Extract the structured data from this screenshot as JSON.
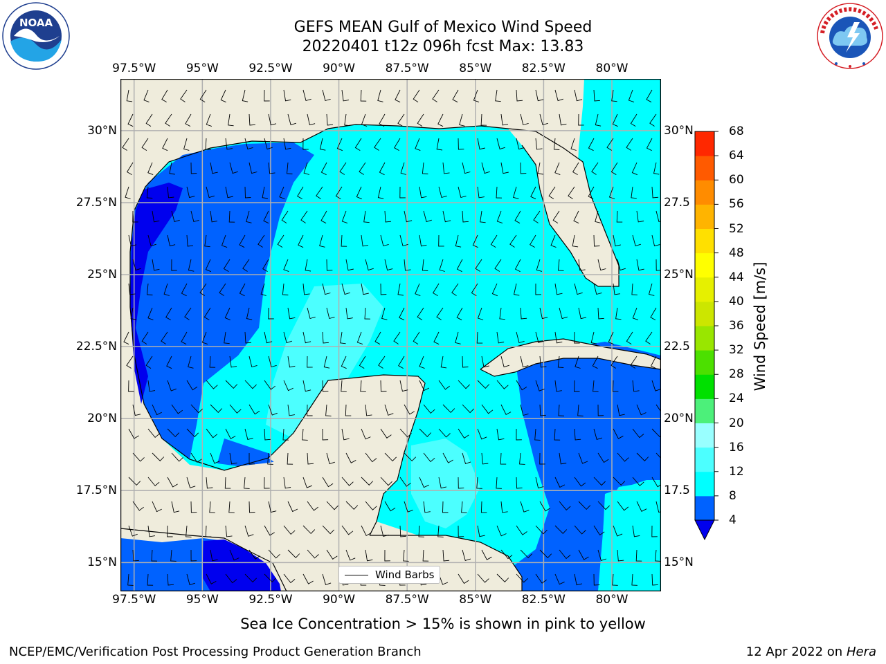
{
  "title": {
    "line1": "GEFS MEAN Gulf of Mexico Wind Speed",
    "line2": "20220401 t12z 096h fcst   Max: 13.83"
  },
  "logos": {
    "left": {
      "name": "NOAA",
      "ring_text": "NATIONAL OCEANIC AND ATMOSPHERIC ADMINISTRATION · U.S. DEPARTMENT OF COMMERCE"
    },
    "right": {
      "name": "NATIONAL WEATHER SERVICE"
    }
  },
  "map": {
    "lon_ticks": [
      "97.5°W",
      "95°W",
      "92.5°W",
      "90°W",
      "87.5°W",
      "85°W",
      "82.5°W",
      "80°W"
    ],
    "lon_values": [
      -97.5,
      -95,
      -92.5,
      -90,
      -87.5,
      -85,
      -82.5,
      -80
    ],
    "lat_ticks_left": [
      "30°N",
      "27.5°N",
      "25°N",
      "22.5°N",
      "20°N",
      "17.5°N",
      "15°N"
    ],
    "lat_ticks_right": [
      "30°N",
      "27.5",
      "25°N",
      "22.5",
      "20°N",
      "17.5",
      "15°N"
    ],
    "lat_values": [
      30,
      27.5,
      25,
      22.5,
      20,
      17.5,
      15
    ],
    "extent": {
      "lon": [
        -98,
        -78.2
      ],
      "lat": [
        14,
        31.8
      ]
    },
    "legend_label": "Wind Barbs",
    "land_color": "#efecdc",
    "grid_color": "#b0b0b0"
  },
  "colorbar": {
    "label": "Wind Speed [m/s]",
    "ticks": [
      "4",
      "8",
      "12",
      "16",
      "20",
      "24",
      "28",
      "32",
      "36",
      "40",
      "44",
      "48",
      "52",
      "56",
      "60",
      "64",
      "68"
    ],
    "colors": [
      "#0062ff",
      "#00ffff",
      "#4cffff",
      "#99ffff",
      "#4cf07a",
      "#00e000",
      "#4ce000",
      "#99e600",
      "#cce600",
      "#e6f000",
      "#ffff00",
      "#ffe000",
      "#ffb400",
      "#ff8c00",
      "#ff5a00",
      "#ff2800"
    ],
    "under_color": "#0000ee"
  },
  "caption": "Sea Ice Concentration > 15% is shown in pink to yellow",
  "footer": {
    "left": "NCEP/EMC/Verification Post Processing Product Generation Branch",
    "right_date": "12 Apr 2022 on",
    "right_host": "Hera"
  }
}
